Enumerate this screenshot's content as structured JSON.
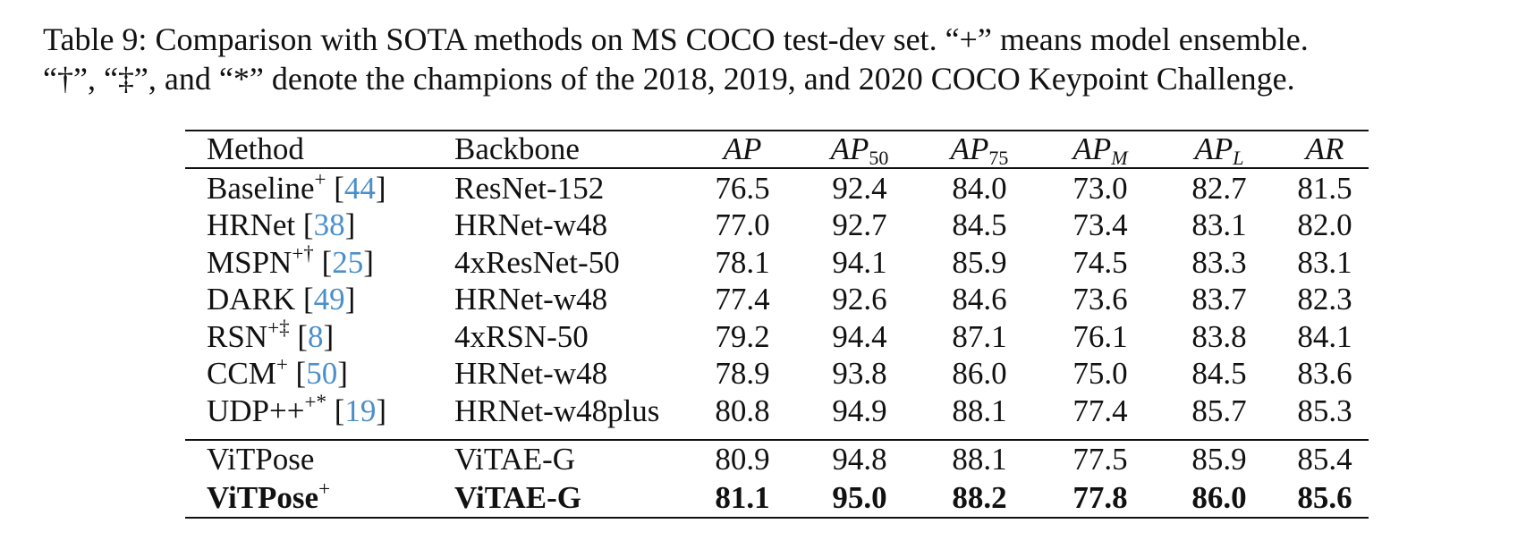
{
  "caption": {
    "line1": "Table 9: Comparison with SOTA methods on MS COCO test-dev set. “+” means model ensemble.",
    "line2": "“†”, “‡”, and “*” denote the champions of the 2018, 2019, and 2020 COCO Keypoint Challenge."
  },
  "table": {
    "headers": {
      "method": "Method",
      "backbone": "Backbone",
      "ap": "AP",
      "ap50_base": "AP",
      "ap50_sub": "50",
      "ap75_base": "AP",
      "ap75_sub": "75",
      "apm_base": "AP",
      "apm_sub": "M",
      "apl_base": "AP",
      "apl_sub": "L",
      "ar": "AR"
    },
    "rows": [
      {
        "method": "Baseline",
        "marks": "+",
        "open": " [",
        "ref": "44",
        "close": "]",
        "backbone": "ResNet-152",
        "ap": "76.5",
        "ap50": "92.4",
        "ap75": "84.0",
        "apm": "73.0",
        "apl": "82.7",
        "ar": "81.5"
      },
      {
        "method": "HRNet",
        "marks": "",
        "open": " [",
        "ref": "38",
        "close": "]",
        "backbone": "HRNet-w48",
        "ap": "77.0",
        "ap50": "92.7",
        "ap75": "84.5",
        "apm": "73.4",
        "apl": "83.1",
        "ar": "82.0"
      },
      {
        "method": "MSPN",
        "marks": "+†",
        "open": " [",
        "ref": "25",
        "close": "]",
        "backbone": "4xResNet-50",
        "ap": "78.1",
        "ap50": "94.1",
        "ap75": "85.9",
        "apm": "74.5",
        "apl": "83.3",
        "ar": "83.1"
      },
      {
        "method": "DARK",
        "marks": "",
        "open": " [",
        "ref": "49",
        "close": "]",
        "backbone": "HRNet-w48",
        "ap": "77.4",
        "ap50": "92.6",
        "ap75": "84.6",
        "apm": "73.6",
        "apl": "83.7",
        "ar": "82.3"
      },
      {
        "method": "RSN",
        "marks": "+‡",
        "open": " [",
        "ref": "8",
        "close": "]",
        "backbone": "4xRSN-50",
        "ap": "79.2",
        "ap50": "94.4",
        "ap75": "87.1",
        "apm": "76.1",
        "apl": "83.8",
        "ar": "84.1"
      },
      {
        "method": "CCM",
        "marks": "+",
        "open": " [",
        "ref": "50",
        "close": "]",
        "backbone": "HRNet-w48",
        "ap": "78.9",
        "ap50": "93.8",
        "ap75": "86.0",
        "apm": "75.0",
        "apl": "84.5",
        "ar": "83.6"
      },
      {
        "method": "UDP++",
        "marks": "+*",
        "open": " [",
        "ref": "19",
        "close": "]",
        "backbone": "HRNet-w48plus",
        "ap": "80.8",
        "ap50": "94.9",
        "ap75": "88.1",
        "apm": "77.4",
        "apl": "85.7",
        "ar": "85.3"
      },
      {
        "method": "ViTPose",
        "marks": "",
        "open": "",
        "ref": "",
        "close": "",
        "backbone": "ViTAE-G",
        "ap": "80.9",
        "ap50": "94.8",
        "ap75": "88.1",
        "apm": "77.5",
        "apl": "85.9",
        "ar": "85.4"
      },
      {
        "method": "ViTPose",
        "marks": "+",
        "open": "",
        "ref": "",
        "close": "",
        "backbone": "ViTAE-G",
        "ap": "81.1",
        "ap50": "95.0",
        "ap75": "88.2",
        "apm": "77.8",
        "apl": "86.0",
        "ar": "85.6"
      }
    ]
  },
  "colors": {
    "citation": "#4a8fc9",
    "text": "#111111"
  }
}
